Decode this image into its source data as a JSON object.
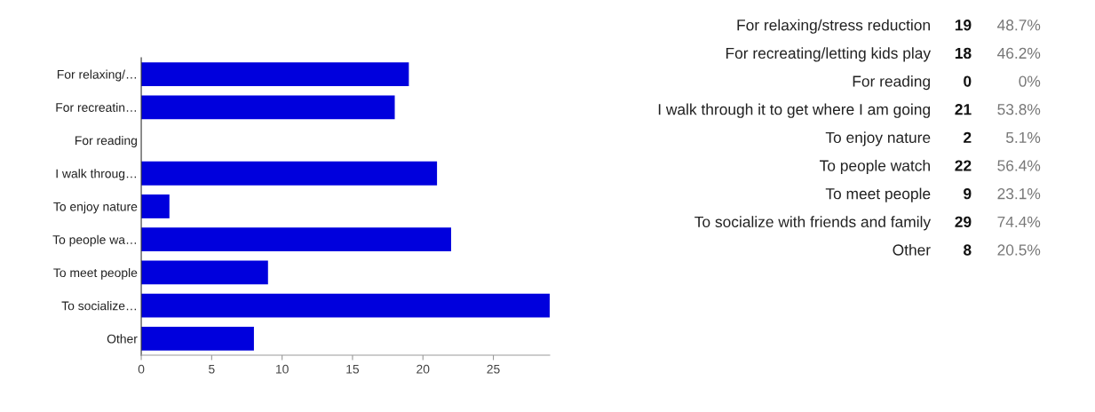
{
  "chart_data": [
    {
      "type": "bar",
      "orientation": "horizontal",
      "categories": [
        "For relaxing/…",
        "For recreatin…",
        "For reading",
        "I walk throug…",
        "To enjoy nature",
        "To people wa…",
        "To meet people",
        "To socialize…",
        "Other"
      ],
      "values": [
        19,
        18,
        0,
        21,
        2,
        22,
        9,
        29,
        8
      ],
      "color": "#0000dd",
      "xlim": [
        0,
        29
      ],
      "xticks": [
        0,
        5,
        10,
        15,
        20,
        25
      ],
      "grid": false,
      "legend": false
    },
    {
      "type": "other",
      "categories": [
        "For relaxing/stress reduction",
        "For recreating/letting kids play",
        "For reading",
        "I walk through it to get where I am going",
        "To enjoy nature",
        "To people watch",
        "To meet people",
        "To socialize with friends and family",
        "Other"
      ],
      "data_labels": true,
      "series": [
        {
          "values": [
            19,
            18,
            0,
            21,
            2,
            22,
            9,
            29,
            8
          ]
        },
        {
          "values": [
            48.7,
            46.2,
            0,
            53.8,
            5.1,
            56.4,
            23.1,
            74.4,
            20.5
          ],
          "value_labels": [
            "48.7%",
            "46.2%",
            "0%",
            "53.8%",
            "5.1%",
            "56.4%",
            "23.1%",
            "74.4%",
            "20.5%"
          ]
        }
      ]
    }
  ]
}
